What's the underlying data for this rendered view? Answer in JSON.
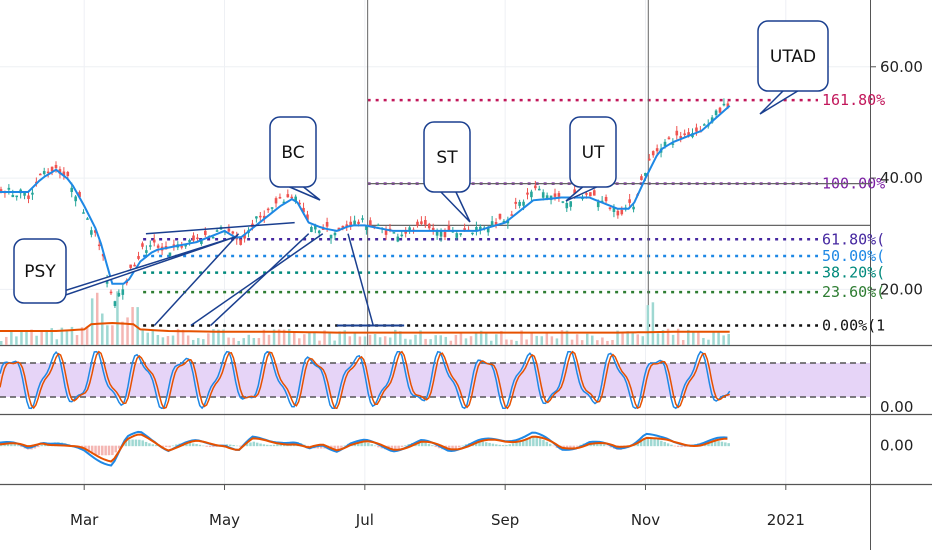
{
  "chart_data": {
    "type": "line",
    "title": "",
    "price_axis": {
      "range": [
        10,
        72
      ],
      "ticks": [
        {
          "value": 20,
          "label": "20.00"
        },
        {
          "value": 40,
          "label": "40.00"
        },
        {
          "value": 60,
          "label": "60.00"
        }
      ]
    },
    "stoch_axis": {
      "range": [
        -10,
        110
      ],
      "tick_label": "0.00",
      "bands": [
        20,
        80
      ]
    },
    "macd_axis": {
      "range": [
        -5,
        4
      ],
      "tick_label": "0.00"
    },
    "x_axis": {
      "range": [
        0,
        31
      ],
      "labels": [
        {
          "t": 3.0,
          "label": "Mar"
        },
        {
          "t": 8.0,
          "label": "May"
        },
        {
          "t": 13.0,
          "label": "Jul"
        },
        {
          "t": 18.0,
          "label": "Sep"
        },
        {
          "t": 23.0,
          "label": "Nov"
        },
        {
          "t": 28.0,
          "label": "2021"
        }
      ]
    },
    "series": [
      {
        "name": "",
        "color": "#26a69a",
        "x": [
          0,
          1,
          1.5,
          2,
          2.5,
          3,
          3.5,
          4,
          4.5,
          5,
          5.5,
          6,
          7,
          8,
          8.5,
          9,
          9.5,
          10,
          10.5,
          11,
          11.5,
          12,
          12.5,
          13,
          13.5,
          14,
          15,
          16,
          17,
          18,
          19,
          20,
          21,
          22,
          22.5,
          23,
          23.5,
          24,
          25,
          26
        ],
        "y": [
          38,
          37,
          41,
          42,
          39,
          34,
          28,
          18,
          22,
          27,
          28,
          27,
          29,
          31,
          28,
          32,
          34,
          36,
          37,
          31,
          31,
          30,
          32,
          32,
          31,
          30,
          31,
          30,
          31,
          33,
          38,
          36,
          37,
          34,
          35,
          42,
          46,
          47,
          49,
          54
        ]
      },
      {
        "name": "",
        "color": "#1e88e5",
        "x": [
          0,
          1,
          1.5,
          2,
          2.5,
          3,
          3.5,
          4,
          4.5,
          5,
          5.5,
          6,
          7,
          8,
          8.5,
          9,
          9.5,
          10,
          10.5,
          11,
          11.5,
          12,
          12.5,
          13,
          13.5,
          14,
          15,
          16,
          17,
          18,
          19,
          20,
          21,
          22,
          22.5,
          23,
          23.5,
          24,
          25,
          26
        ],
        "y": [
          37.5,
          37.5,
          40,
          41.5,
          39.5,
          35,
          30,
          21,
          21,
          25,
          27,
          27.5,
          28.5,
          30.5,
          29,
          31,
          33,
          35,
          36.5,
          32,
          31,
          30.5,
          31.5,
          31.5,
          31,
          30.5,
          30.5,
          30.5,
          30.5,
          32,
          36,
          36.5,
          36.5,
          34.5,
          34.5,
          40,
          45,
          46.5,
          48.5,
          53
        ]
      },
      {
        "name": "",
        "color": "#e65100",
        "panel": "volume",
        "x": [
          0,
          2,
          4,
          6,
          8,
          10,
          12,
          14,
          16,
          18,
          20,
          22,
          24,
          26
        ],
        "y": [
          1.0,
          1.0,
          1.4,
          1.0,
          0.9,
          0.9,
          0.8,
          0.8,
          0.8,
          0.8,
          0.8,
          0.8,
          0.9,
          0.9
        ]
      }
    ],
    "fibonacci": [
      {
        "level": 1.618,
        "label": "161.80%",
        "price": 54.0,
        "color": "#c2185b"
      },
      {
        "level": 1.0,
        "label": "100.00%",
        "price": 39.0,
        "color": "#7b1fa2"
      },
      {
        "level": 0.618,
        "label": "61.80%(",
        "price": 29.0,
        "color": "#4527a0"
      },
      {
        "level": 0.5,
        "label": "50.00%(",
        "price": 26.0,
        "color": "#1e88e5"
      },
      {
        "level": 0.382,
        "label": "38.20%(",
        "price": 23.0,
        "color": "#00897b"
      },
      {
        "level": 0.236,
        "label": "23.60%(",
        "price": 19.5,
        "color": "#2e7d32"
      },
      {
        "level": 0.0,
        "label": "0.00%(1",
        "price": 13.5,
        "color": "#111111"
      }
    ],
    "horizontal_lines": [
      39.0,
      31.5
    ],
    "vertical_lines": [
      13.1,
      23.1
    ],
    "annotations": [
      {
        "text": "PSY",
        "t": 2.9,
        "price": 31
      },
      {
        "text": "BC",
        "t": 10.9,
        "price": 38
      },
      {
        "text": "ST",
        "t": 16.0,
        "price": 31
      },
      {
        "text": "UT",
        "t": 19.3,
        "price": 38
      },
      {
        "text": "UTAD",
        "t": 26.2,
        "price": 54
      }
    ]
  }
}
